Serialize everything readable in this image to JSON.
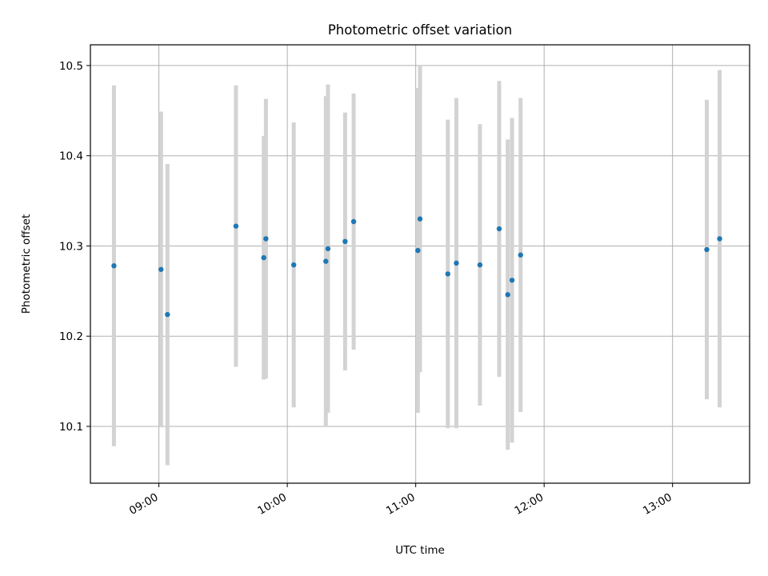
{
  "chart_data": {
    "type": "scatter",
    "title": "Photometric offset variation",
    "xlabel": "UTC time",
    "ylabel": "Photometric offset",
    "x_unit": "UTC time (HH:MM)",
    "xlim": [
      "08:28",
      "13:36"
    ],
    "ylim": [
      10.037,
      10.523
    ],
    "x_ticks": [
      "09:00",
      "10:00",
      "11:00",
      "12:00",
      "13:00"
    ],
    "y_ticks": [
      10.1,
      10.2,
      10.3,
      10.4,
      10.5
    ],
    "y_tick_labels": [
      "10.1",
      "10.2",
      "10.3",
      "10.4",
      "10.5"
    ],
    "grid": true,
    "point_color": "#1f77b4",
    "errorbar_color": "#d3d3d3",
    "points": [
      {
        "time": "08:39",
        "y": 10.278,
        "err": 0.2
      },
      {
        "time": "09:01",
        "y": 10.274,
        "err": 0.175
      },
      {
        "time": "09:04",
        "y": 10.224,
        "err": 0.167
      },
      {
        "time": "09:36",
        "y": 10.322,
        "err": 0.156
      },
      {
        "time": "09:49",
        "y": 10.287,
        "err": 0.135
      },
      {
        "time": "09:50",
        "y": 10.308,
        "err": 0.155
      },
      {
        "time": "10:03",
        "y": 10.279,
        "err": 0.158
      },
      {
        "time": "10:18",
        "y": 10.283,
        "err": 0.183
      },
      {
        "time": "10:19",
        "y": 10.297,
        "err": 0.182
      },
      {
        "time": "10:27",
        "y": 10.305,
        "err": 0.143
      },
      {
        "time": "10:31",
        "y": 10.327,
        "err": 0.142
      },
      {
        "time": "11:01",
        "y": 10.295,
        "err": 0.18
      },
      {
        "time": "11:02",
        "y": 10.33,
        "err": 0.17
      },
      {
        "time": "11:15",
        "y": 10.269,
        "err": 0.171
      },
      {
        "time": "11:19",
        "y": 10.281,
        "err": 0.183
      },
      {
        "time": "11:30",
        "y": 10.279,
        "err": 0.156
      },
      {
        "time": "11:39",
        "y": 10.319,
        "err": 0.164
      },
      {
        "time": "11:43",
        "y": 10.246,
        "err": 0.172
      },
      {
        "time": "11:45",
        "y": 10.262,
        "err": 0.18
      },
      {
        "time": "11:49",
        "y": 10.29,
        "err": 0.174
      },
      {
        "time": "13:16",
        "y": 10.296,
        "err": 0.166
      },
      {
        "time": "13:22",
        "y": 10.308,
        "err": 0.187
      }
    ]
  }
}
